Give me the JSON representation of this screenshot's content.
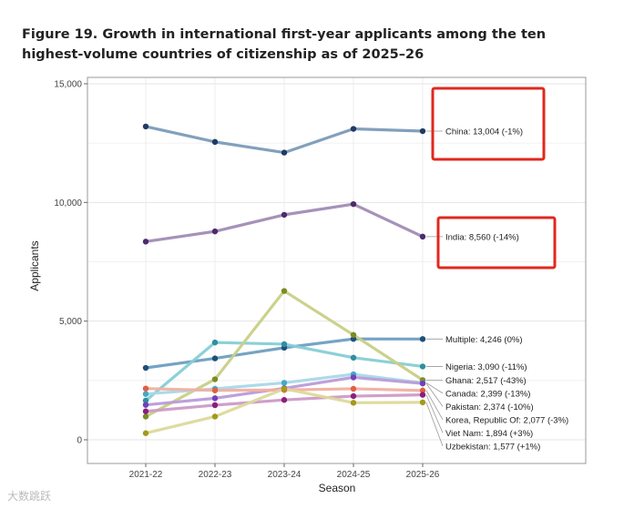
{
  "header": {
    "title_line1": "Figure 19. Growth in international first-year applicants among the ten",
    "title_line2": "highest-volume countries of citizenship as of 2025–26"
  },
  "watermark": "大数跳跃",
  "chart_data": {
    "type": "line",
    "title": "Figure 19. Growth in international first-year applicants among the ten highest-volume countries of citizenship as of 2025–26",
    "xlabel": "Season",
    "ylabel": "Applicants",
    "categories": [
      "2021-22",
      "2022-23",
      "2023-24",
      "2024-25",
      "2025-26"
    ],
    "ylim": [
      0,
      15000
    ],
    "yticks": [
      0,
      5000,
      10000,
      15000
    ],
    "ytick_labels": [
      "0",
      "5,000",
      "10,000",
      "15,000"
    ],
    "grid": true,
    "series": [
      {
        "name": "China",
        "label": "China: 13,004 (-1%)",
        "values": [
          13200,
          12550,
          12100,
          13100,
          13004
        ],
        "color": "#7b9bb8",
        "marker": "#1f3b63"
      },
      {
        "name": "India",
        "label": "India: 8,560 (-14%)",
        "values": [
          8350,
          8780,
          9480,
          9930,
          8560
        ],
        "color": "#a08cb5",
        "marker": "#4e2a6b"
      },
      {
        "name": "Multiple",
        "label": "Multiple: 4,246 (0%)",
        "values": [
          3030,
          3430,
          3880,
          4250,
          4246
        ],
        "color": "#6e9ec1",
        "marker": "#1e4f7a"
      },
      {
        "name": "Nigeria",
        "label": "Nigeria: 3,090 (-11%)",
        "values": [
          1650,
          4100,
          4030,
          3460,
          3090
        ],
        "color": "#86cdd6",
        "marker": "#2e8f9f"
      },
      {
        "name": "Ghana",
        "label": "Ghana: 2,517 (-43%)",
        "values": [
          980,
          2550,
          6270,
          4420,
          2517
        ],
        "color": "#c9cf86",
        "marker": "#7a8d22"
      },
      {
        "name": "Canada",
        "label": "Canada: 2,399 (-13%)",
        "values": [
          1930,
          2150,
          2400,
          2760,
          2399
        ],
        "color": "#a9d8e8",
        "marker": "#43a9c8"
      },
      {
        "name": "Pakistan",
        "label": "Pakistan: 2,374 (-10%)",
        "values": [
          1470,
          1750,
          2170,
          2630,
          2374
        ],
        "color": "#b99bd9",
        "marker": "#7440b8"
      },
      {
        "name": "Korea, Republic Of",
        "label": "Korea, Republic Of: 2,077 (-3%)",
        "values": [
          2160,
          2080,
          2100,
          2150,
          2077
        ],
        "color": "#f0b0a0",
        "marker": "#e0603f"
      },
      {
        "name": "Viet Nam",
        "label": "Viet Nam: 1,894 (+3%)",
        "values": [
          1200,
          1460,
          1680,
          1840,
          1894
        ],
        "color": "#cc9ac8",
        "marker": "#8a1f7a"
      },
      {
        "name": "Uzbekistan",
        "label": "Uzbekistan: 1,577 (+1%)",
        "values": [
          280,
          980,
          2150,
          1560,
          1577
        ],
        "color": "#dcd99a",
        "marker": "#a39a1a"
      }
    ],
    "highlighted_labels": [
      "China",
      "India"
    ],
    "highlight_color": "#e0281e"
  }
}
